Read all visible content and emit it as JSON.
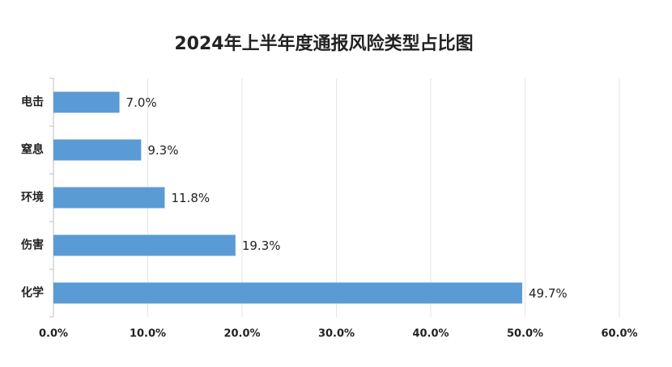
{
  "chart_data": {
    "type": "hbar",
    "title": "2024年上半年度通报风险类型占比图",
    "categories": [
      "电击",
      "窒息",
      "环境",
      "伤害",
      "化学"
    ],
    "values": [
      7.0,
      9.3,
      11.8,
      19.3,
      49.7
    ],
    "value_labels": [
      "7.0%",
      "9.3%",
      "11.8%",
      "19.3%",
      "49.7%"
    ],
    "color": "#5b9bd5",
    "xlim": [
      0,
      60
    ],
    "xticks": [
      {
        "value": 0,
        "label": "0.0%"
      },
      {
        "value": 10,
        "label": "10.0%"
      },
      {
        "value": 20,
        "label": "20.0%"
      },
      {
        "value": 30,
        "label": "30.0%"
      },
      {
        "value": 40,
        "label": "40.0%"
      },
      {
        "value": 50,
        "label": "50.0%"
      },
      {
        "value": 60,
        "label": "60.0%"
      }
    ],
    "grid": true
  }
}
